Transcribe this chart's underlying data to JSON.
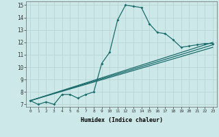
{
  "xlabel": "Humidex (Indice chaleur)",
  "background_color": "#cce8e8",
  "grid_color": "#b8d4d4",
  "line_color": "#1a6b6b",
  "xlim": [
    -0.5,
    23.5
  ],
  "ylim": [
    6.8,
    15.3
  ],
  "xticks": [
    0,
    1,
    2,
    3,
    4,
    5,
    6,
    7,
    8,
    9,
    10,
    11,
    12,
    13,
    14,
    15,
    16,
    17,
    18,
    19,
    20,
    21,
    22,
    23
  ],
  "yticks": [
    7,
    8,
    9,
    10,
    11,
    12,
    13,
    14,
    15
  ],
  "line1": {
    "x": [
      0,
      1,
      2,
      3,
      4,
      5,
      6,
      7,
      8,
      9,
      10,
      11,
      12,
      13,
      14,
      15,
      16,
      17,
      18,
      19,
      20,
      21,
      22,
      23
    ],
    "y": [
      7.3,
      7.0,
      7.2,
      7.0,
      7.8,
      7.8,
      7.5,
      7.8,
      8.0,
      10.3,
      11.2,
      13.8,
      15.0,
      14.9,
      14.8,
      13.5,
      12.8,
      12.7,
      12.2,
      11.6,
      11.7,
      11.8,
      11.9,
      11.9
    ]
  },
  "line2": {
    "x": [
      0,
      23
    ],
    "y": [
      7.3,
      12.0
    ]
  },
  "line3": {
    "x": [
      0,
      23
    ],
    "y": [
      7.3,
      11.8
    ]
  },
  "line4": {
    "x": [
      0,
      23
    ],
    "y": [
      7.3,
      11.6
    ]
  }
}
